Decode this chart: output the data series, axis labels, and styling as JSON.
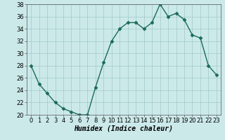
{
  "x": [
    0,
    1,
    2,
    3,
    4,
    5,
    6,
    7,
    8,
    9,
    10,
    11,
    12,
    13,
    14,
    15,
    16,
    17,
    18,
    19,
    20,
    21,
    22,
    23
  ],
  "y": [
    28,
    25,
    23.5,
    22,
    21,
    20.5,
    20,
    20,
    24.5,
    28.5,
    32,
    34,
    35,
    35,
    34,
    35,
    38,
    36,
    36.5,
    35.5,
    33,
    32.5,
    28,
    26.5
  ],
  "line_color": "#1a6b55",
  "marker": "D",
  "marker_size": 2.5,
  "bg_color": "#cce9ea",
  "grid_color": "#a0c8c8",
  "xlabel": "Humidex (Indice chaleur)",
  "ylim": [
    20,
    38
  ],
  "xlim_min": -0.5,
  "xlim_max": 23.5,
  "yticks": [
    20,
    22,
    24,
    26,
    28,
    30,
    32,
    34,
    36,
    38
  ],
  "xticks": [
    0,
    1,
    2,
    3,
    4,
    5,
    6,
    7,
    8,
    9,
    10,
    11,
    12,
    13,
    14,
    15,
    16,
    17,
    18,
    19,
    20,
    21,
    22,
    23
  ],
  "xtick_labels": [
    "0",
    "1",
    "2",
    "3",
    "4",
    "5",
    "6",
    "7",
    "8",
    "9",
    "10",
    "11",
    "12",
    "13",
    "14",
    "15",
    "16",
    "17",
    "18",
    "19",
    "20",
    "21",
    "22",
    "23"
  ],
  "xlabel_fontsize": 7,
  "tick_fontsize": 6,
  "linewidth": 1.0
}
